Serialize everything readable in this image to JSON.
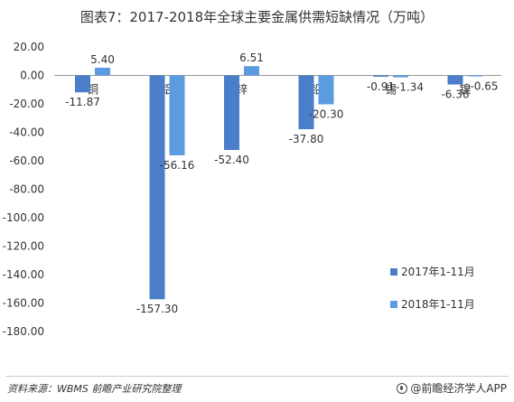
{
  "title": "图表7：2017-2018年全球主要金属供需短缺情况（万吨）",
  "footer": {
    "source": "资料来源：WBMS 前瞻产业研究院整理",
    "brand": "@前瞻经济学人APP"
  },
  "colors": {
    "series_2017": "#4a7ec9",
    "series_2018": "#5b9be0",
    "axis": "#999999",
    "text": "#333333"
  },
  "chart_data": {
    "type": "bar",
    "title": "图表7：2017-2018年全球主要金属供需短缺情况（万吨）",
    "categories": [
      "铜",
      "铝",
      "锌",
      "铅",
      "锡",
      "镍"
    ],
    "series": [
      {
        "name": "2017年1-11月",
        "values": [
          -11.87,
          -157.3,
          -52.4,
          -37.8,
          -0.91,
          -6.36
        ]
      },
      {
        "name": "2018年1-11月",
        "values": [
          5.4,
          -56.16,
          6.51,
          -20.3,
          -1.34,
          -0.65
        ]
      }
    ],
    "data_labels_2017": [
      "-11.87",
      "-157.30",
      "-52.40",
      "-37.80",
      "-0.91",
      "-6.36"
    ],
    "data_labels_2018": [
      "5.40",
      "-56.16",
      "6.51",
      "-20.30",
      "-1.34",
      "-0.65"
    ],
    "yticks": [
      "20.00",
      "0.00",
      "-20.00",
      "-40.00",
      "-60.00",
      "-80.00",
      "-100.00",
      "-120.00",
      "-140.00",
      "-160.00",
      "-180.00"
    ],
    "ylim": [
      -180,
      20
    ],
    "xlabel": "",
    "ylabel": "",
    "grid": false,
    "legend_position": "right-bottom"
  }
}
